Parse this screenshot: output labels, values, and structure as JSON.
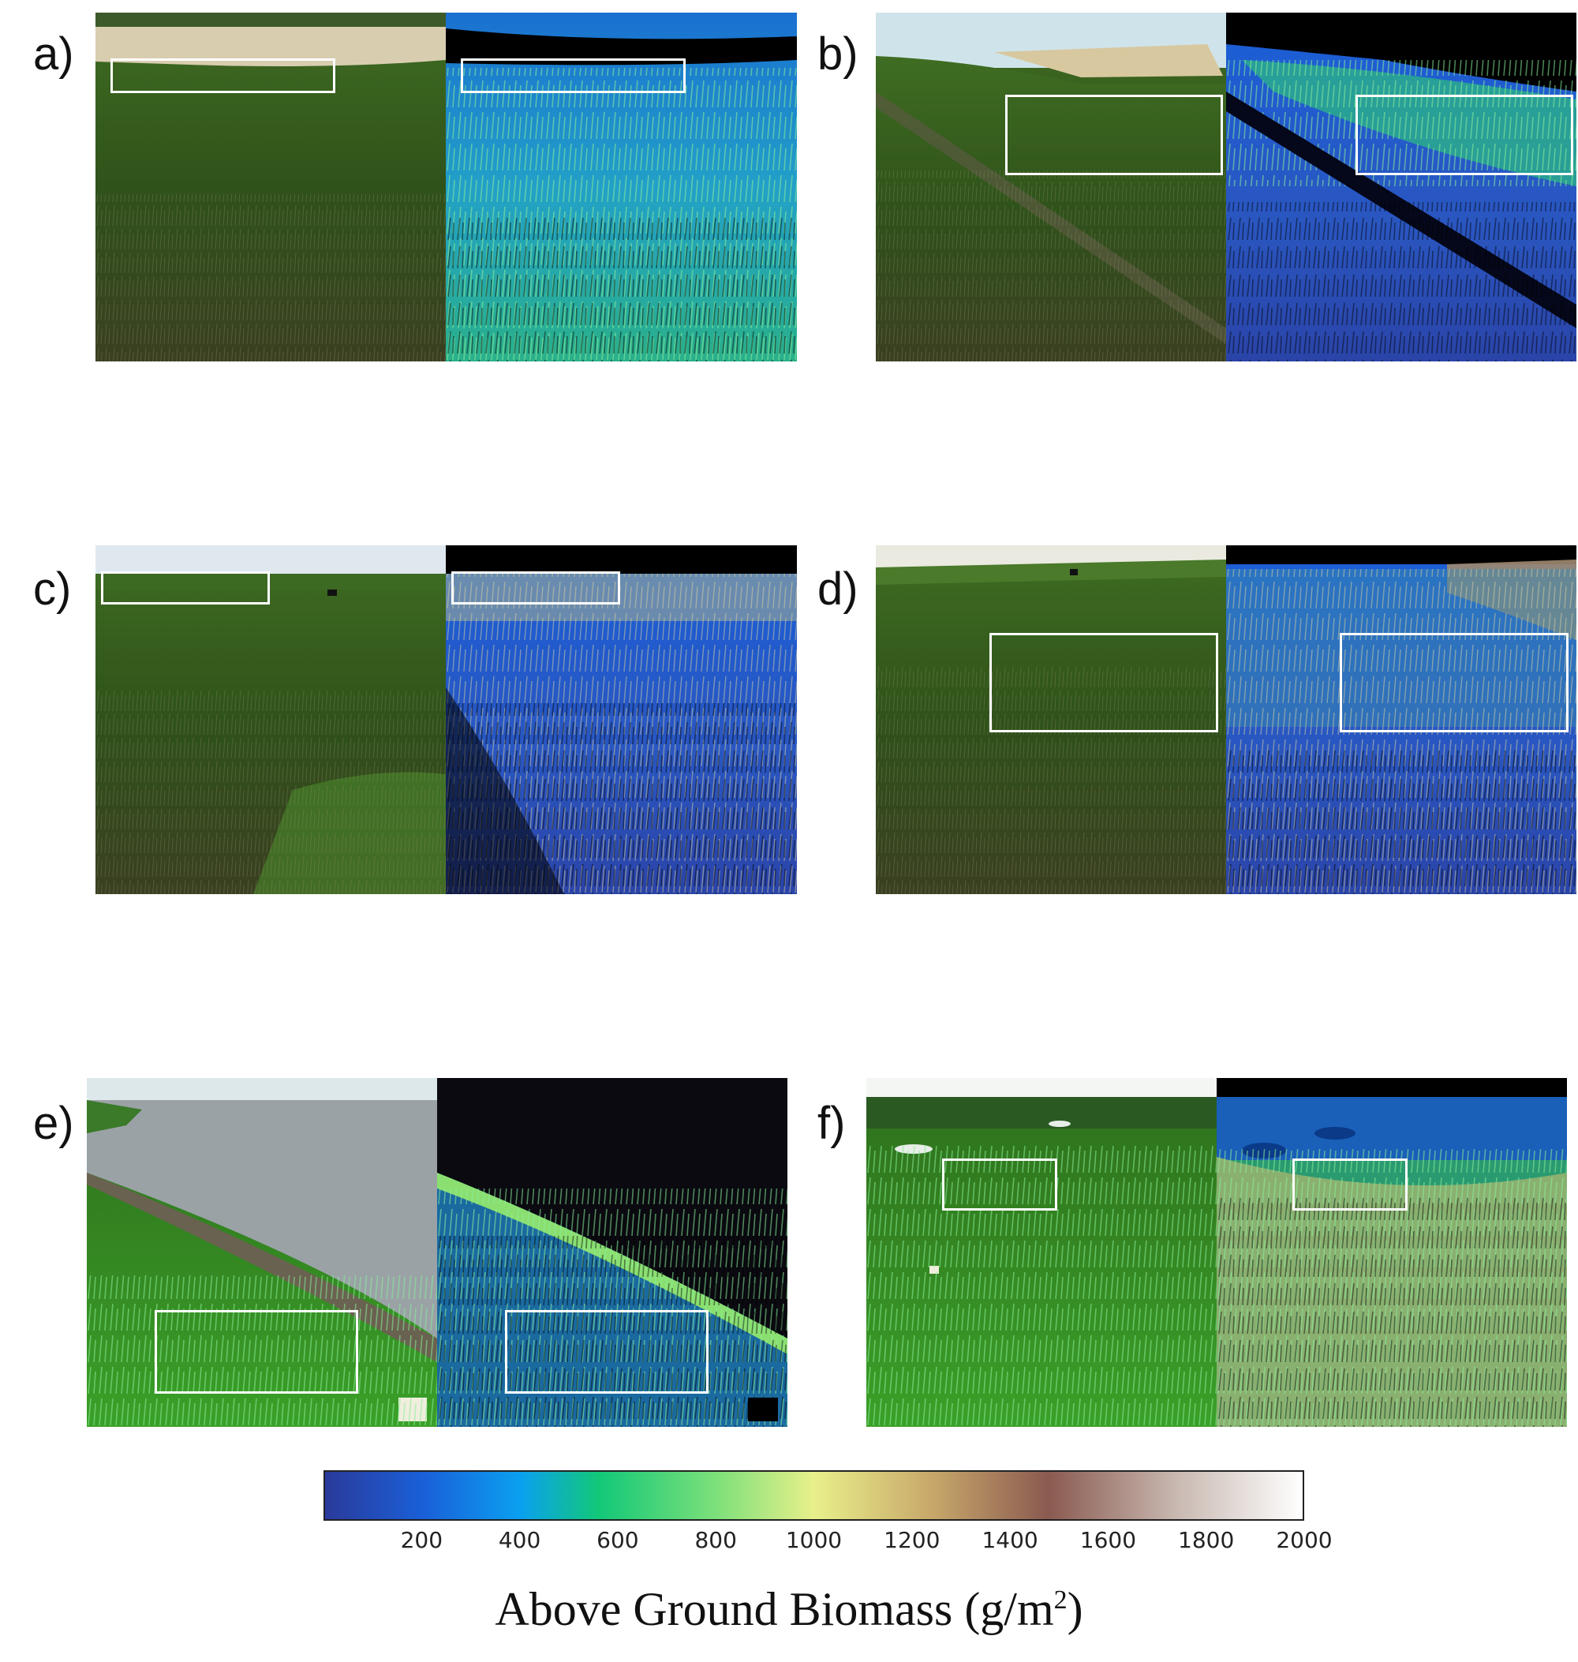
{
  "panels": [
    {
      "label": "a)",
      "scene": "marsh-beach"
    },
    {
      "label": "b)",
      "scene": "marsh-shore-path"
    },
    {
      "label": "c)",
      "scene": "marsh-horizon"
    },
    {
      "label": "d)",
      "scene": "marsh-wide"
    },
    {
      "label": "e)",
      "scene": "marsh-waterline"
    },
    {
      "label": "f)",
      "scene": "marsh-pools"
    }
  ],
  "colorbar": {
    "ticks": [
      "200",
      "400",
      "600",
      "800",
      "1000",
      "1200",
      "1400",
      "1600",
      "1800",
      "2000"
    ],
    "range": [
      0,
      2000
    ],
    "title_main": "Above Ground Biomass (g/m",
    "title_sup": "2",
    "title_end": ")",
    "stops": [
      "#2a3a9a",
      "#1565d8",
      "#0aa0f0",
      "#12c878",
      "#7de07a",
      "#e8f08a",
      "#c8a86a",
      "#8a5a50",
      "#c8b8b0",
      "#ffffff"
    ]
  }
}
